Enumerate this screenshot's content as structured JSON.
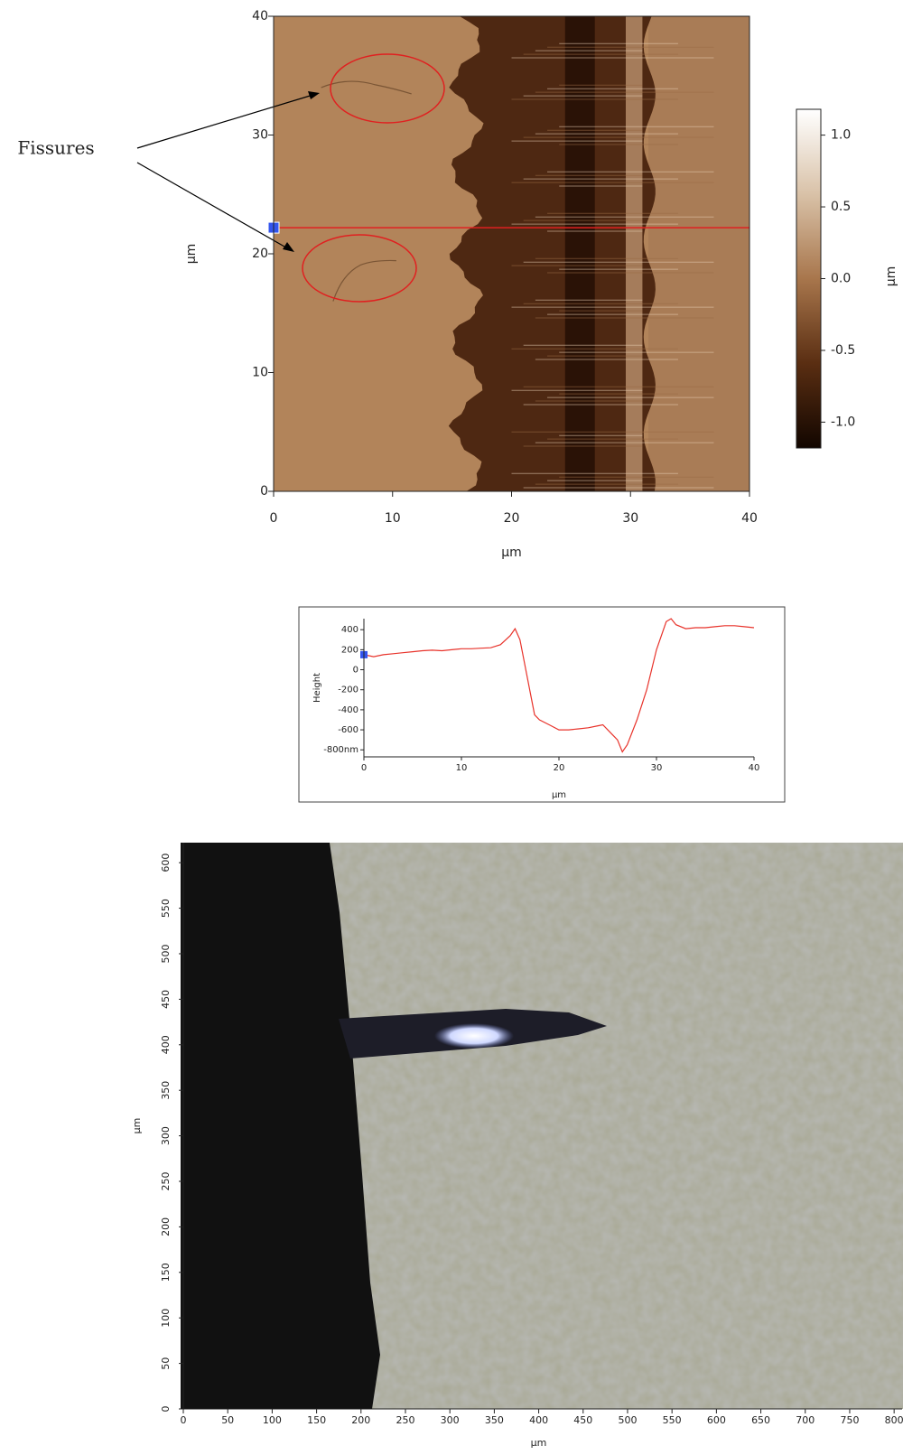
{
  "chart_data": [
    {
      "type": "heatmap",
      "xlabel": "µm",
      "ylabel": "µm",
      "xlim": [
        0,
        40
      ],
      "ylim": [
        0,
        40
      ],
      "xticks": [
        0,
        10,
        20,
        30,
        40
      ],
      "yticks": [
        0,
        10,
        20,
        30,
        40
      ],
      "marker_y": 22.2,
      "annotation": "Fissures",
      "colorbar": {
        "label": "µm",
        "lim": [
          -1.18,
          1.18
        ],
        "ticks": [
          {
            "value": 1,
            "label": "1.0"
          },
          0.5,
          {
            "value": 0,
            "label": "0.0"
          },
          -0.5,
          {
            "value": -1,
            "label": "-1.0"
          }
        ],
        "colors": [
          "#120600",
          "#5a2e12",
          "#a8764c",
          "#d9c2a8",
          "#ffffff"
        ]
      }
    },
    {
      "type": "line",
      "xlabel": "µm",
      "ylabel": "Height",
      "xlim": [
        0,
        40
      ],
      "ylim": [
        -870,
        510
      ],
      "xticks": [
        0,
        10,
        20,
        30,
        40
      ],
      "yticks": [
        400,
        200,
        0,
        -200,
        -400,
        -600,
        {
          "value": -800,
          "label": "-800nm"
        }
      ],
      "x": [
        0,
        1,
        2,
        3,
        4,
        5,
        6,
        7,
        8,
        9,
        10,
        11,
        12,
        13,
        14,
        15,
        15.5,
        16,
        17,
        17.5,
        18,
        19,
        20,
        21,
        22,
        23,
        24,
        24.5,
        25,
        26,
        26.5,
        27,
        28,
        29,
        30,
        31,
        31.5,
        32,
        33,
        34,
        35,
        36,
        37,
        38,
        39,
        40
      ],
      "series": [
        {
          "color": "#e8332b",
          "values": [
            150,
            130,
            150,
            160,
            170,
            180,
            190,
            195,
            190,
            200,
            210,
            210,
            215,
            220,
            250,
            340,
            410,
            300,
            -200,
            -450,
            -500,
            -550,
            -600,
            -600,
            -590,
            -580,
            -560,
            -550,
            -600,
            -700,
            -820,
            -750,
            -500,
            -200,
            200,
            480,
            510,
            450,
            410,
            420,
            420,
            430,
            440,
            440,
            430,
            420
          ]
        }
      ]
    },
    {
      "type": "image",
      "xlabel": "µm",
      "ylabel": "µm",
      "xlim": [
        0,
        810
      ],
      "ylim": [
        0,
        622
      ],
      "xticks": [
        0,
        50,
        100,
        150,
        200,
        250,
        300,
        350,
        400,
        450,
        500,
        550,
        600,
        650,
        700,
        750,
        800
      ],
      "yticks": [
        0,
        50,
        100,
        150,
        200,
        250,
        300,
        350,
        400,
        450,
        500,
        550,
        600
      ]
    }
  ]
}
